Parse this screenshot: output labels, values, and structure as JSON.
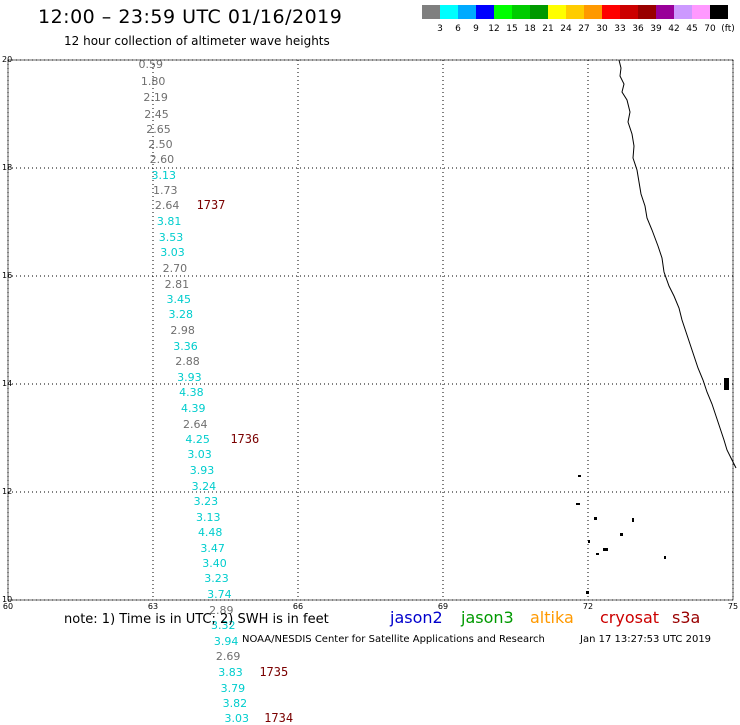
{
  "header": {
    "title": "12:00 – 23:59 UTC 01/16/2019",
    "subtitle": "12 hour collection of altimeter wave heights"
  },
  "color_scale": {
    "colors": [
      "#7f7f7f",
      "#00ffff",
      "#00aaff",
      "#0000ff",
      "#00ff00",
      "#00cc00",
      "#009900",
      "#ffff00",
      "#ffcc00",
      "#ff9900",
      "#ff0000",
      "#cc0000",
      "#990000",
      "#990099",
      "#cc99ff",
      "#ff99ff",
      "#000000"
    ],
    "labels": [
      "3",
      "6",
      "9",
      "12",
      "15",
      "18",
      "21",
      "24",
      "27",
      "30",
      "33",
      "36",
      "39",
      "42",
      "45",
      "70",
      "(ft)"
    ]
  },
  "map": {
    "lon_range": [
      60,
      75
    ],
    "lat_range": [
      10,
      20
    ],
    "x_ticks": [
      "60",
      "63",
      "66",
      "69",
      "72",
      "75"
    ],
    "y_ticks": [
      "10",
      "12",
      "14",
      "16",
      "18",
      "20"
    ]
  },
  "observations": [
    {
      "lat": 19.91,
      "lon": 62.7,
      "value": "0.59",
      "color": "gray"
    },
    {
      "lat": 19.6,
      "lon": 62.75,
      "value": "1.80",
      "color": "gray"
    },
    {
      "lat": 19.29,
      "lon": 62.8,
      "value": "2.19",
      "color": "gray"
    },
    {
      "lat": 18.99,
      "lon": 62.82,
      "value": "2.45",
      "color": "gray"
    },
    {
      "lat": 18.71,
      "lon": 62.86,
      "value": "2.65",
      "color": "gray"
    },
    {
      "lat": 18.42,
      "lon": 62.9,
      "value": "2.50",
      "color": "gray"
    },
    {
      "lat": 18.15,
      "lon": 62.93,
      "value": "2.60",
      "color": "gray"
    },
    {
      "lat": 17.86,
      "lon": 62.97,
      "value": "3.13",
      "color": "cyan"
    },
    {
      "lat": 17.57,
      "lon": 63.0,
      "value": "1.73",
      "color": "gray"
    },
    {
      "lat": 17.29,
      "lon": 63.04,
      "value": "2.64",
      "color": "gray"
    },
    {
      "lat": 17.0,
      "lon": 63.08,
      "value": "3.81",
      "color": "cyan"
    },
    {
      "lat": 16.7,
      "lon": 63.12,
      "value": "3.53",
      "color": "cyan"
    },
    {
      "lat": 16.42,
      "lon": 63.15,
      "value": "3.03",
      "color": "cyan"
    },
    {
      "lat": 16.13,
      "lon": 63.2,
      "value": "2.70",
      "color": "gray"
    },
    {
      "lat": 15.84,
      "lon": 63.24,
      "value": "2.81",
      "color": "gray"
    },
    {
      "lat": 15.55,
      "lon": 63.28,
      "value": "3.45",
      "color": "cyan"
    },
    {
      "lat": 15.27,
      "lon": 63.32,
      "value": "3.28",
      "color": "cyan"
    },
    {
      "lat": 14.98,
      "lon": 63.36,
      "value": "2.98",
      "color": "gray"
    },
    {
      "lat": 14.69,
      "lon": 63.42,
      "value": "3.36",
      "color": "cyan"
    },
    {
      "lat": 14.4,
      "lon": 63.46,
      "value": "2.88",
      "color": "gray"
    },
    {
      "lat": 14.12,
      "lon": 63.5,
      "value": "3.93",
      "color": "cyan"
    },
    {
      "lat": 13.83,
      "lon": 63.54,
      "value": "4.38",
      "color": "cyan"
    },
    {
      "lat": 13.54,
      "lon": 63.58,
      "value": "4.39",
      "color": "cyan"
    },
    {
      "lat": 13.25,
      "lon": 63.62,
      "value": "2.64",
      "color": "gray"
    },
    {
      "lat": 12.96,
      "lon": 63.67,
      "value": "4.25",
      "color": "cyan"
    },
    {
      "lat": 12.68,
      "lon": 63.71,
      "value": "3.03",
      "color": "cyan"
    },
    {
      "lat": 12.39,
      "lon": 63.76,
      "value": "3.93",
      "color": "cyan"
    },
    {
      "lat": 12.1,
      "lon": 63.8,
      "value": "3.24",
      "color": "cyan"
    },
    {
      "lat": 11.81,
      "lon": 63.84,
      "value": "3.23",
      "color": "cyan"
    },
    {
      "lat": 11.52,
      "lon": 63.89,
      "value": "3.13",
      "color": "cyan"
    },
    {
      "lat": 11.24,
      "lon": 63.93,
      "value": "4.48",
      "color": "cyan"
    },
    {
      "lat": 10.95,
      "lon": 63.98,
      "value": "3.47",
      "color": "cyan"
    },
    {
      "lat": 10.66,
      "lon": 64.02,
      "value": "3.40",
      "color": "cyan"
    },
    {
      "lat": 10.38,
      "lon": 64.06,
      "value": "3.23",
      "color": "cyan"
    },
    {
      "lat": 10.09,
      "lon": 64.12,
      "value": "3.74",
      "color": "cyan"
    },
    {
      "lat": 9.8,
      "lon": 64.16,
      "value": "2.89",
      "color": "gray"
    },
    {
      "lat": 9.51,
      "lon": 64.2,
      "value": "3.32",
      "color": "cyan"
    },
    {
      "lat": 9.23,
      "lon": 64.26,
      "value": "3.94",
      "color": "cyan"
    },
    {
      "lat": 8.94,
      "lon": 64.3,
      "value": "2.69",
      "color": "gray"
    },
    {
      "lat": 8.65,
      "lon": 64.35,
      "value": "3.83",
      "color": "cyan"
    },
    {
      "lat": 8.36,
      "lon": 64.4,
      "value": "3.79",
      "color": "cyan"
    },
    {
      "lat": 8.08,
      "lon": 64.44,
      "value": "3.82",
      "color": "cyan"
    },
    {
      "lat": 7.79,
      "lon": 64.48,
      "value": "3.03",
      "color": "cyan"
    }
  ],
  "pass_times": [
    {
      "lat": 17.29,
      "lon": 63.9,
      "label": "1737"
    },
    {
      "lat": 12.96,
      "lon": 64.6,
      "label": "1736"
    },
    {
      "lat": 8.65,
      "lon": 65.2,
      "label": "1735"
    },
    {
      "lat": 7.79,
      "lon": 65.3,
      "label": "1734"
    }
  ],
  "footer": {
    "note": "note: 1) Time is in UTC; 2) SWH is in feet",
    "credit": "NOAA/NESDIS Center for Satellite Applications and Research",
    "timestamp": "Jan 17 13:27:53 UTC 2019"
  },
  "legend": [
    {
      "label": "jason2",
      "color": "#0000cc"
    },
    {
      "label": "jason3",
      "color": "#009900"
    },
    {
      "label": "altika",
      "color": "#ff9900"
    },
    {
      "label": "cryosat",
      "color": "#cc0000"
    },
    {
      "label": "s3a",
      "color": "#990000"
    }
  ]
}
